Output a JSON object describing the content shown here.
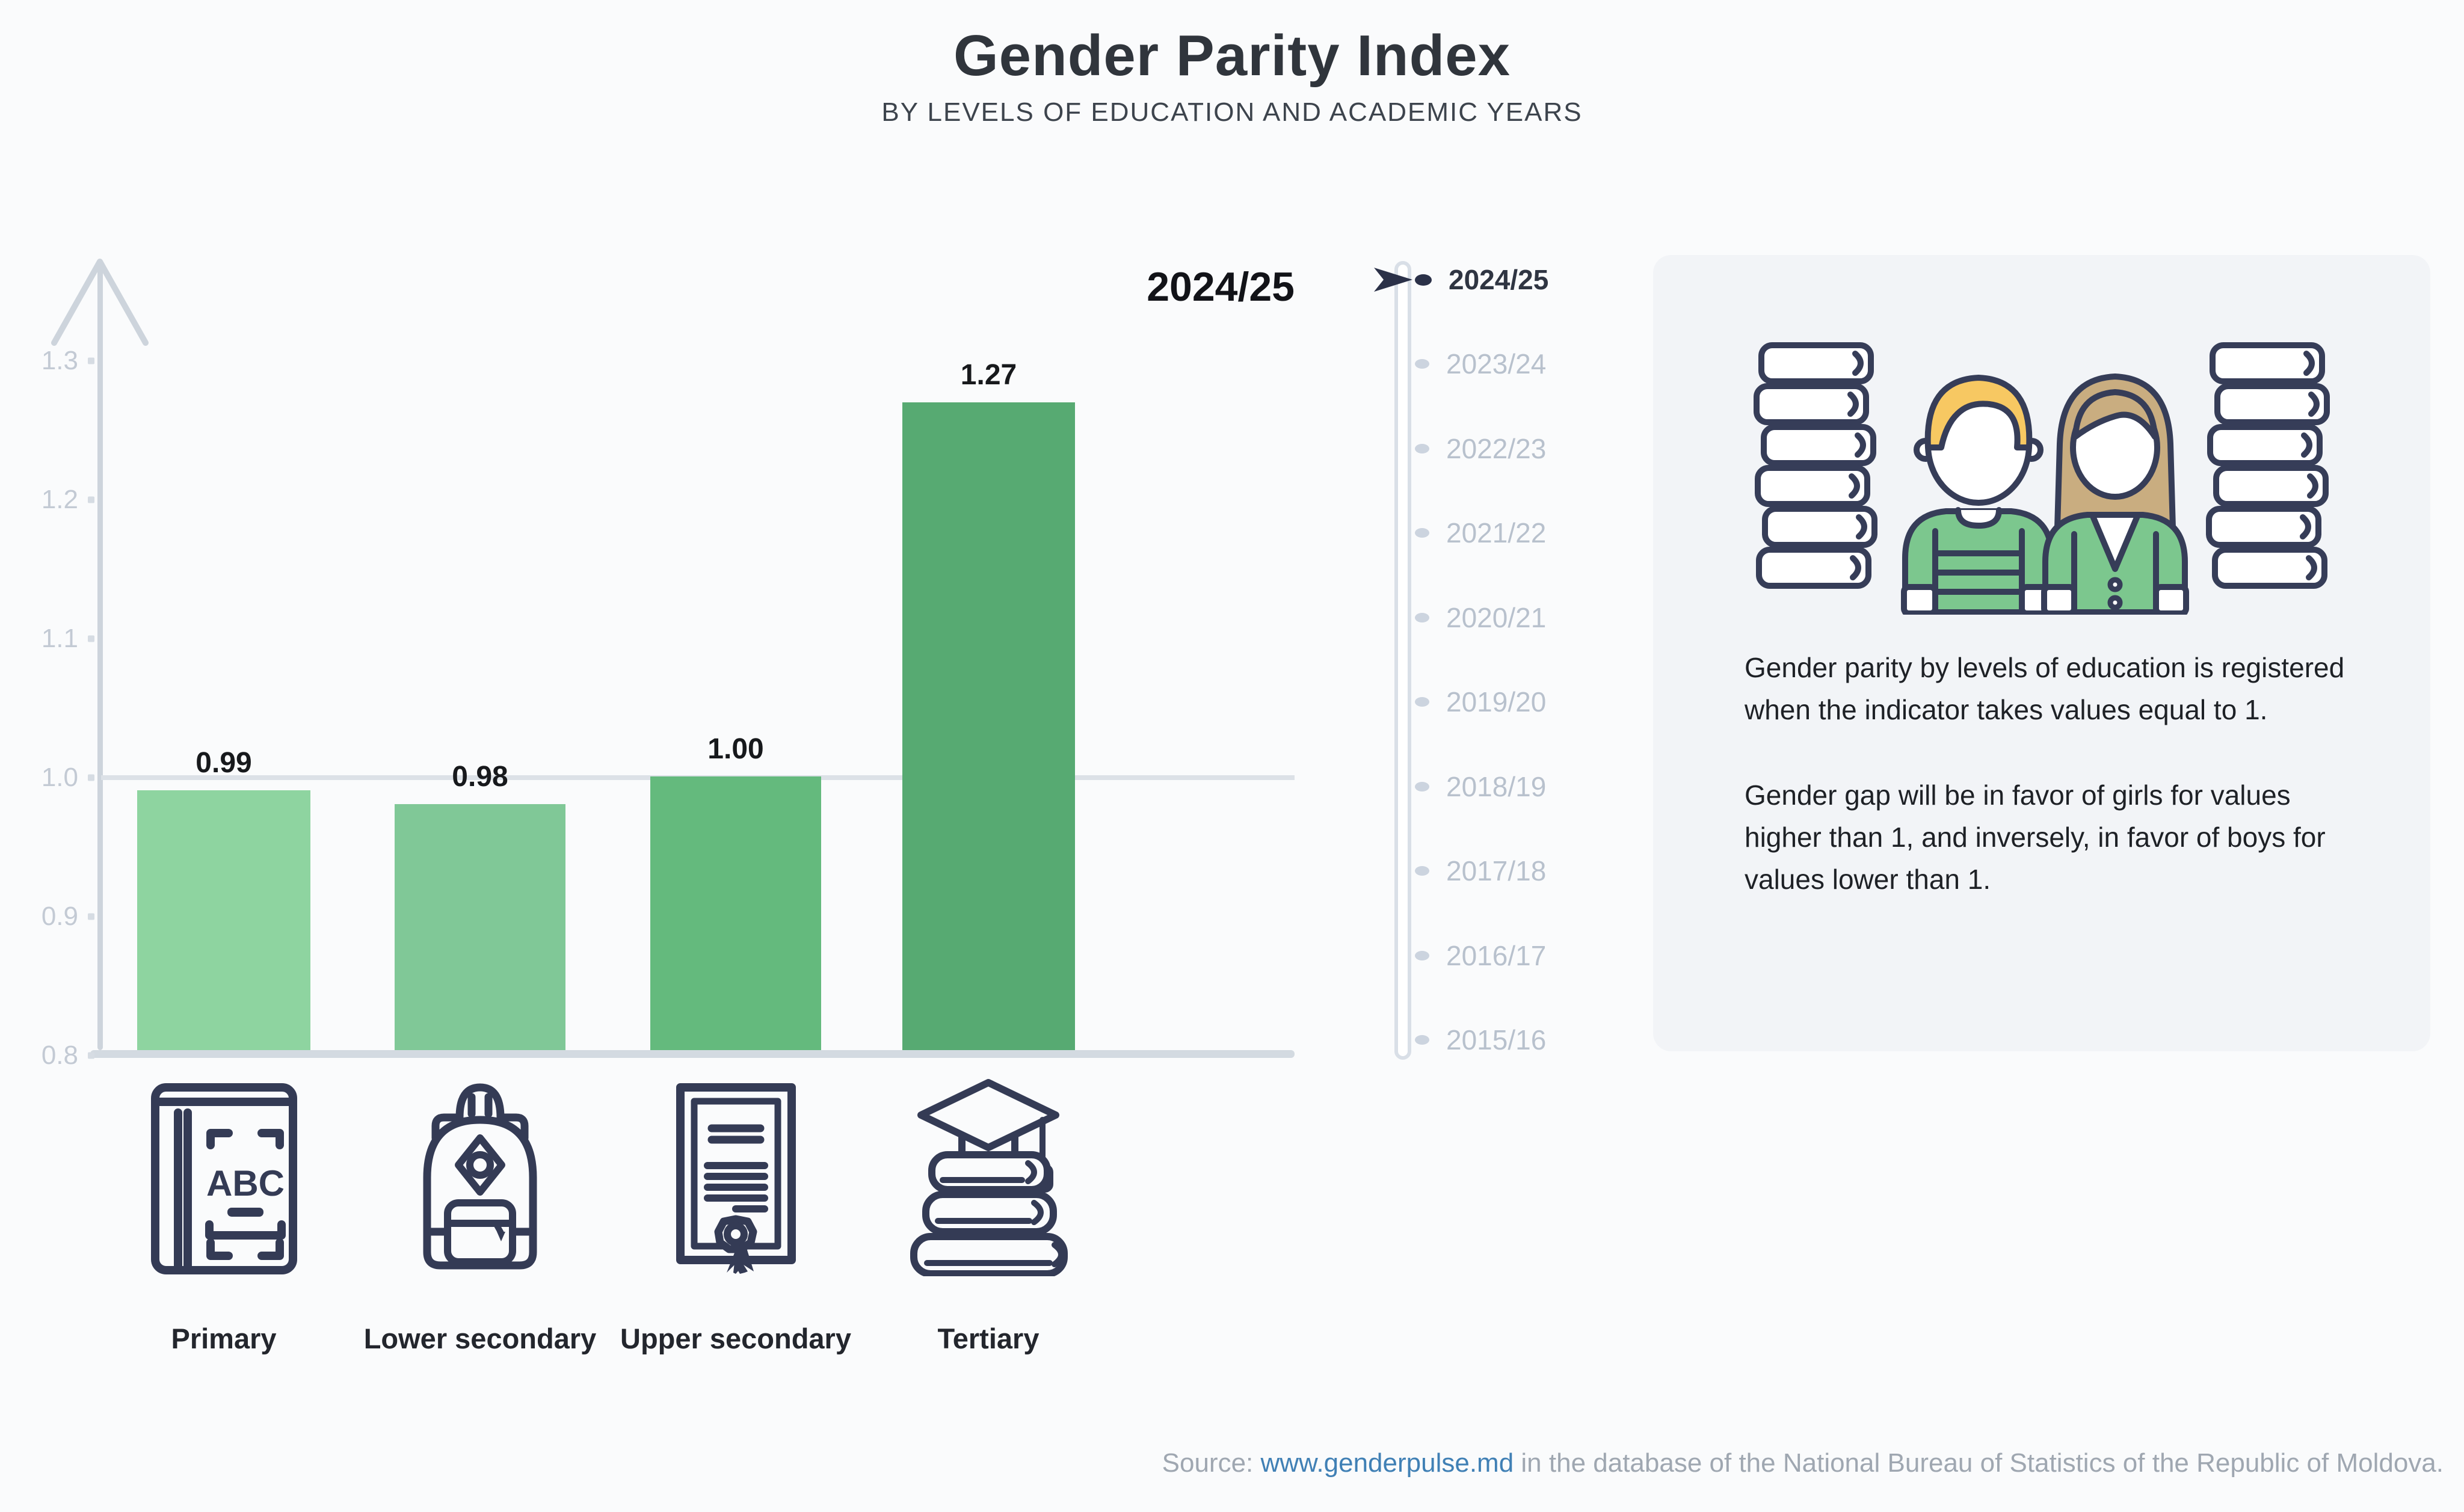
{
  "title": "Gender Parity Index",
  "subtitle": "BY LEVELS OF EDUCATION AND ACADEMIC YEARS",
  "chart_data": {
    "type": "bar",
    "categories": [
      "Primary",
      "Lower secondary",
      "Upper secondary",
      "Tertiary"
    ],
    "values": [
      0.99,
      0.98,
      1.0,
      1.27
    ],
    "value_labels": [
      "0.99",
      "0.98",
      "1.00",
      "1.27"
    ],
    "bar_colors": [
      "#8ed4a0",
      "#80c897",
      "#64ba7d",
      "#57aa72"
    ],
    "title": "Gender Parity Index",
    "xlabel": "",
    "ylabel": "",
    "ylim": [
      0.8,
      1.3
    ],
    "yticks": [
      "1.3",
      "1.2",
      "1.1",
      "1.0",
      "0.9",
      "0.8"
    ],
    "reference_line": 1.0,
    "grid": "horizontal line at 1.0 only",
    "legend": "none",
    "selected_year": "2024/25"
  },
  "year_selector": {
    "selected": "2024/25",
    "years": [
      "2024/25",
      "2023/24",
      "2022/23",
      "2021/22",
      "2020/21",
      "2019/20",
      "2018/19",
      "2017/18",
      "2016/17",
      "2015/16"
    ]
  },
  "info_panel": {
    "paragraph1": "Gender parity by levels of education is registered when the indicator takes values equal to 1.",
    "paragraph2": "Gender gap will be in favor of girls for values higher than 1, and inversely, in favor of boys for values lower than 1."
  },
  "source": {
    "prefix": "Source: ",
    "link": "www.genderpulse.md",
    "suffix": " in the database of the National Bureau of Statistics of the Republic of Moldova."
  },
  "colors": {
    "page_bg": "#fafbfc",
    "panel_bg": "#f2f4f7",
    "axis": "#cdd4dc",
    "grid": "#dce1e7",
    "tick_text": "#c3cad4",
    "outline_navy": "#343b55",
    "selected_year_text": "#2f3542",
    "muted_year_text": "#b8c1cd",
    "link_blue": "#4080b5",
    "boy_hair": "#f7c862",
    "girl_hair": "#c9ad80",
    "figure_green": "#7cc78e"
  },
  "icons": {
    "primary": "abc-book-icon",
    "lower_secondary": "backpack-icon",
    "upper_secondary": "diploma-icon",
    "tertiary": "books-graduation-cap-icon"
  }
}
